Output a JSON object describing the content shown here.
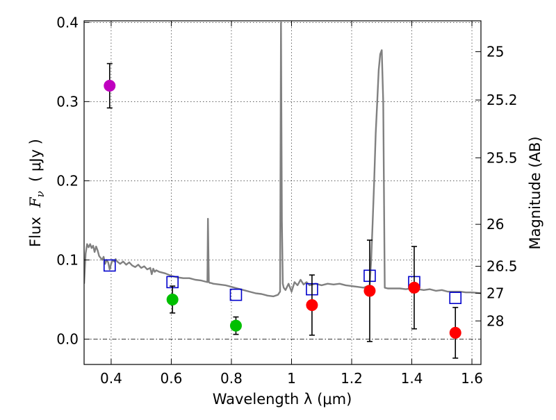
{
  "chart_data": {
    "type": "scatter",
    "xlabel": "Wavelength  λ (μm)",
    "ylabel_left": "Flux  F_ν  ( μJy )",
    "ylabel_right": "Magnitude (AB)",
    "xlim": [
      0.31,
      1.63
    ],
    "ylim": [
      -0.032,
      0.402
    ],
    "xticks": [
      0.4,
      0.6,
      0.8,
      1.0,
      1.2,
      1.4,
      1.6
    ],
    "xtick_labels": [
      "0.4",
      "0.6",
      "0.8",
      "1",
      "1.2",
      "1.4",
      "1.6"
    ],
    "yticks": [
      0.0,
      0.1,
      0.2,
      0.3,
      0.4
    ],
    "ytick_labels": [
      "0.0",
      "0.1",
      "0.2",
      "0.3",
      "0.4"
    ],
    "right_ticks": [
      {
        "label": "25",
        "flux": 0.363
      },
      {
        "label": "25.2",
        "flux": 0.302
      },
      {
        "label": "25.5",
        "flux": 0.229
      },
      {
        "label": "26",
        "flux": 0.145
      },
      {
        "label": "26.5",
        "flux": 0.092
      },
      {
        "label": "27",
        "flux": 0.058
      },
      {
        "label": "28",
        "flux": 0.023
      }
    ],
    "grid": true,
    "series": [
      {
        "name": "model-spectrum",
        "kind": "line",
        "color": "#808080",
        "x": [
          0.31,
          0.315,
          0.32,
          0.325,
          0.33,
          0.335,
          0.34,
          0.345,
          0.35,
          0.355,
          0.36,
          0.37,
          0.375,
          0.38,
          0.385,
          0.39,
          0.395,
          0.4,
          0.405,
          0.41,
          0.415,
          0.42,
          0.43,
          0.44,
          0.45,
          0.46,
          0.47,
          0.48,
          0.49,
          0.5,
          0.51,
          0.52,
          0.53,
          0.535,
          0.54,
          0.545,
          0.55,
          0.56,
          0.57,
          0.58,
          0.6,
          0.62,
          0.64,
          0.66,
          0.68,
          0.7,
          0.72,
          0.722,
          0.725,
          0.728,
          0.731,
          0.74,
          0.76,
          0.78,
          0.8,
          0.82,
          0.84,
          0.86,
          0.88,
          0.9,
          0.92,
          0.94,
          0.955,
          0.962,
          0.965,
          0.968,
          0.971,
          0.974,
          0.98,
          0.99,
          1.0,
          1.01,
          1.02,
          1.03,
          1.04,
          1.05,
          1.06,
          1.08,
          1.1,
          1.12,
          1.14,
          1.16,
          1.18,
          1.2,
          1.22,
          1.24,
          1.26,
          1.265,
          1.27,
          1.275,
          1.28,
          1.285,
          1.29,
          1.295,
          1.3,
          1.305,
          1.31,
          1.32,
          1.34,
          1.36,
          1.38,
          1.4,
          1.42,
          1.44,
          1.46,
          1.48,
          1.5,
          1.52,
          1.54,
          1.56,
          1.58,
          1.6,
          1.63
        ],
        "y": [
          0.07,
          0.108,
          0.12,
          0.116,
          0.12,
          0.115,
          0.118,
          0.11,
          0.117,
          0.112,
          0.105,
          0.1,
          0.104,
          0.095,
          0.1,
          0.097,
          0.088,
          0.095,
          0.1,
          0.098,
          0.101,
          0.098,
          0.095,
          0.098,
          0.094,
          0.097,
          0.093,
          0.091,
          0.094,
          0.09,
          0.092,
          0.088,
          0.09,
          0.082,
          0.089,
          0.085,
          0.087,
          0.085,
          0.084,
          0.083,
          0.08,
          0.078,
          0.077,
          0.077,
          0.075,
          0.074,
          0.072,
          0.152,
          0.072,
          0.071,
          0.071,
          0.07,
          0.069,
          0.068,
          0.066,
          0.064,
          0.062,
          0.06,
          0.058,
          0.057,
          0.055,
          0.054,
          0.056,
          0.06,
          0.4,
          0.15,
          0.07,
          0.065,
          0.062,
          0.07,
          0.06,
          0.072,
          0.068,
          0.075,
          0.069,
          0.072,
          0.068,
          0.07,
          0.068,
          0.07,
          0.069,
          0.07,
          0.068,
          0.067,
          0.066,
          0.065,
          0.068,
          0.1,
          0.15,
          0.2,
          0.26,
          0.3,
          0.34,
          0.36,
          0.365,
          0.3,
          0.065,
          0.064,
          0.064,
          0.064,
          0.063,
          0.064,
          0.063,
          0.062,
          0.063,
          0.061,
          0.062,
          0.06,
          0.06,
          0.06,
          0.059,
          0.059,
          0.058
        ]
      },
      {
        "name": "model-photometry",
        "kind": "open-square",
        "color": "#0000cc",
        "x": [
          0.395,
          0.604,
          0.815,
          1.068,
          1.26,
          1.408,
          1.545
        ],
        "y": [
          0.093,
          0.072,
          0.056,
          0.063,
          0.08,
          0.072,
          0.052
        ]
      },
      {
        "name": "observed-blue",
        "kind": "point",
        "color": "#bf00bf",
        "x": [
          0.395
        ],
        "y": [
          0.32
        ],
        "err": [
          0.028
        ]
      },
      {
        "name": "observed-optical",
        "kind": "point",
        "color": "#00bf00",
        "x": [
          0.604,
          0.815
        ],
        "y": [
          0.05,
          0.017
        ],
        "err": [
          0.017,
          0.011
        ]
      },
      {
        "name": "observed-nir",
        "kind": "point",
        "color": "#ff0000",
        "x": [
          1.068,
          1.26,
          1.408,
          1.545
        ],
        "y": [
          0.043,
          0.061,
          0.065,
          0.008
        ],
        "err": [
          0.038,
          0.064,
          0.052,
          0.032
        ]
      }
    ]
  }
}
